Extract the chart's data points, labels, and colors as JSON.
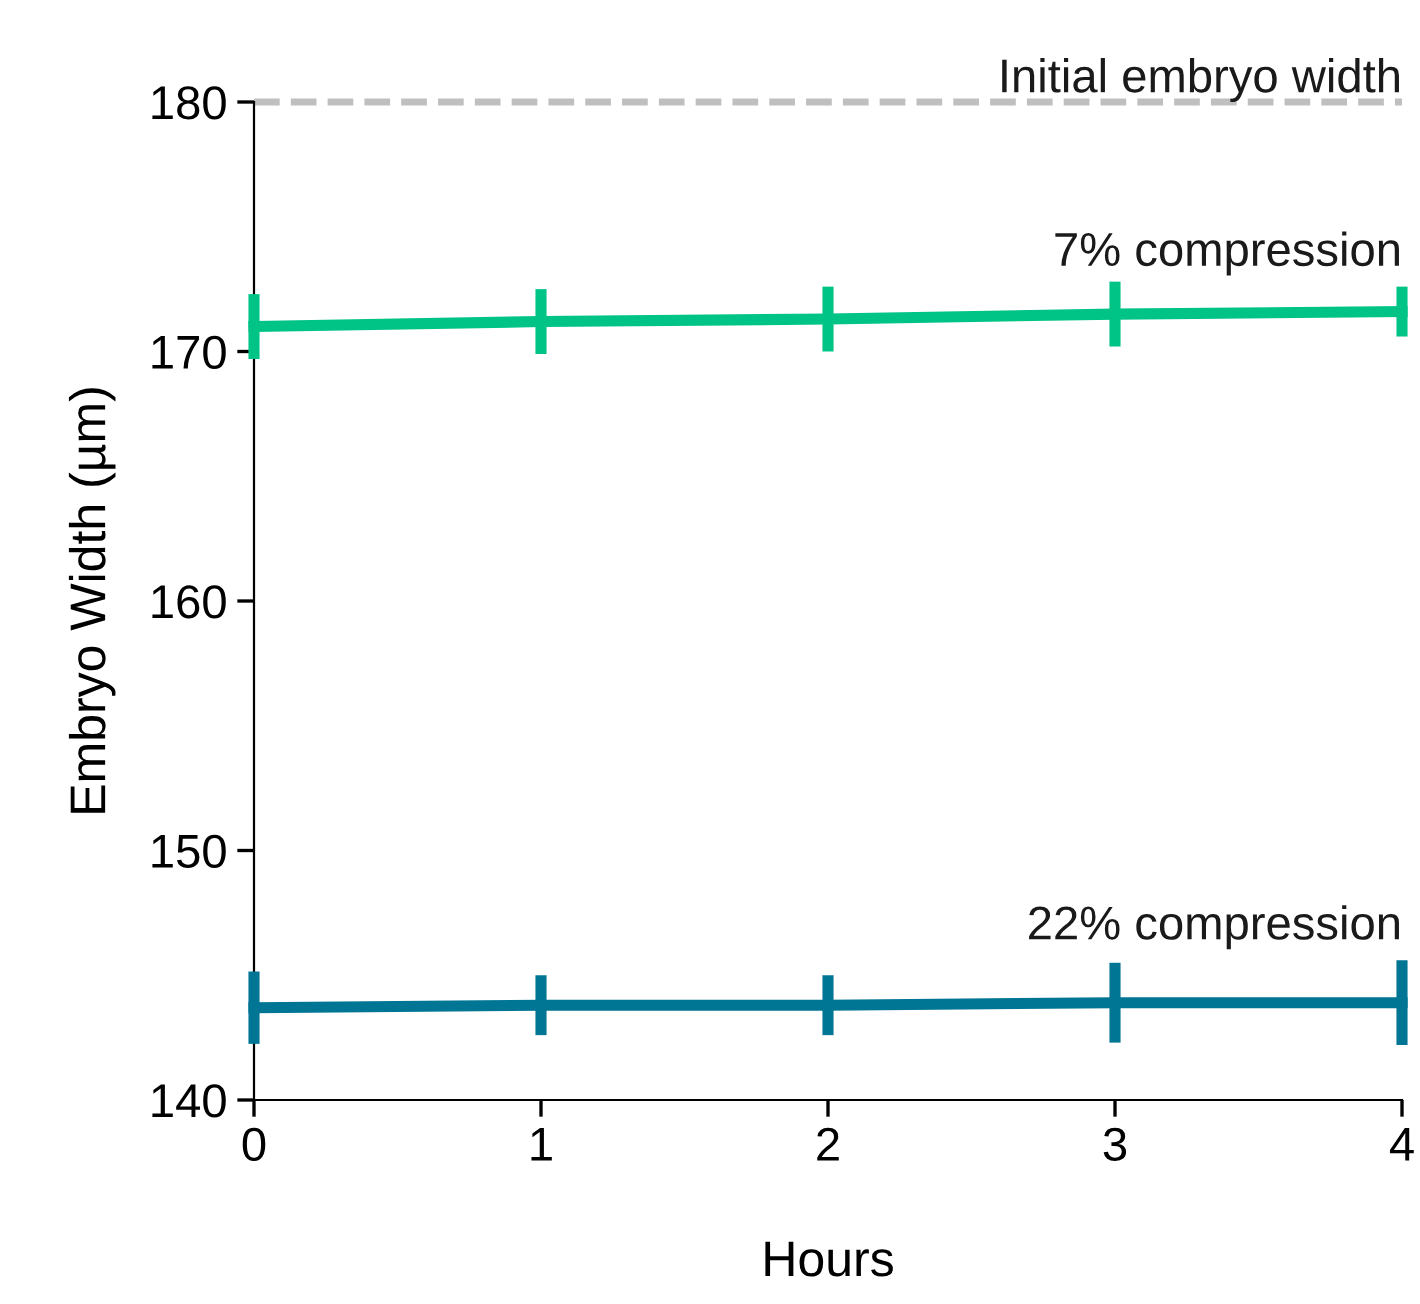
{
  "chart_data": {
    "type": "line",
    "xlabel": "Hours",
    "ylabel": "Embryo Width (µm)",
    "x": [
      0,
      1,
      2,
      3,
      4
    ],
    "series": [
      {
        "name": "7% compression",
        "color": "#00c386",
        "values": [
          171.0,
          171.2,
          171.3,
          171.5,
          171.6
        ],
        "errors": [
          1.3,
          1.3,
          1.3,
          1.3,
          1.0
        ]
      },
      {
        "name": "22% compression",
        "color": "#007594",
        "values": [
          143.7,
          143.8,
          143.8,
          143.9,
          143.9
        ],
        "errors": [
          1.45,
          1.2,
          1.2,
          1.6,
          1.7
        ]
      }
    ],
    "xlim": [
      0,
      4
    ],
    "xticks": [
      0,
      1,
      2,
      3,
      4
    ],
    "ylim": [
      140,
      180
    ],
    "yticks": [
      140,
      150,
      160,
      170,
      180
    ],
    "ref_lines": [
      {
        "axis": "y",
        "value": 180,
        "label": "Initial embryo width",
        "color": "#bfbfbf",
        "line_style": "dashed"
      }
    ],
    "grid": false,
    "legend": false,
    "marker": "none",
    "line_style": "solid"
  }
}
